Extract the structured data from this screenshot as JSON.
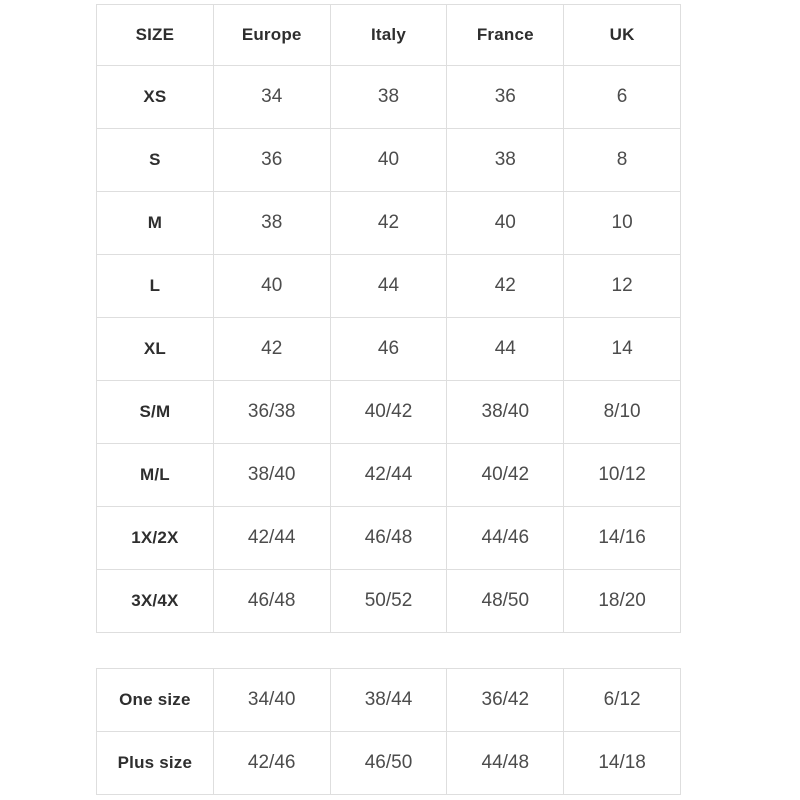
{
  "colors": {
    "background": "#ffffff",
    "border": "#dedede",
    "header_text": "#2e2e2e",
    "value_text": "#4c4c4c"
  },
  "chart_data": [
    {
      "type": "table",
      "name": "size-conversion-table",
      "columns": [
        "SIZE",
        "Europe",
        "Italy",
        "France",
        "UK"
      ],
      "rows": [
        [
          "XS",
          "34",
          "38",
          "36",
          "6"
        ],
        [
          "S",
          "36",
          "40",
          "38",
          "8"
        ],
        [
          "M",
          "38",
          "42",
          "40",
          "10"
        ],
        [
          "L",
          "40",
          "44",
          "42",
          "12"
        ],
        [
          "XL",
          "42",
          "46",
          "44",
          "14"
        ],
        [
          "S/M",
          "36/38",
          "40/42",
          "38/40",
          "8/10"
        ],
        [
          "M/L",
          "38/40",
          "42/44",
          "40/42",
          "10/12"
        ],
        [
          "1X/2X",
          "42/44",
          "46/48",
          "44/46",
          "14/16"
        ],
        [
          "3X/4X",
          "46/48",
          "50/52",
          "48/50",
          "18/20"
        ]
      ]
    },
    {
      "type": "table",
      "name": "special-sizes-table",
      "columns": [],
      "rows": [
        [
          "One size",
          "34/40",
          "38/44",
          "36/42",
          "6/12"
        ],
        [
          "Plus size",
          "42/46",
          "46/50",
          "44/48",
          "14/18"
        ]
      ]
    }
  ]
}
